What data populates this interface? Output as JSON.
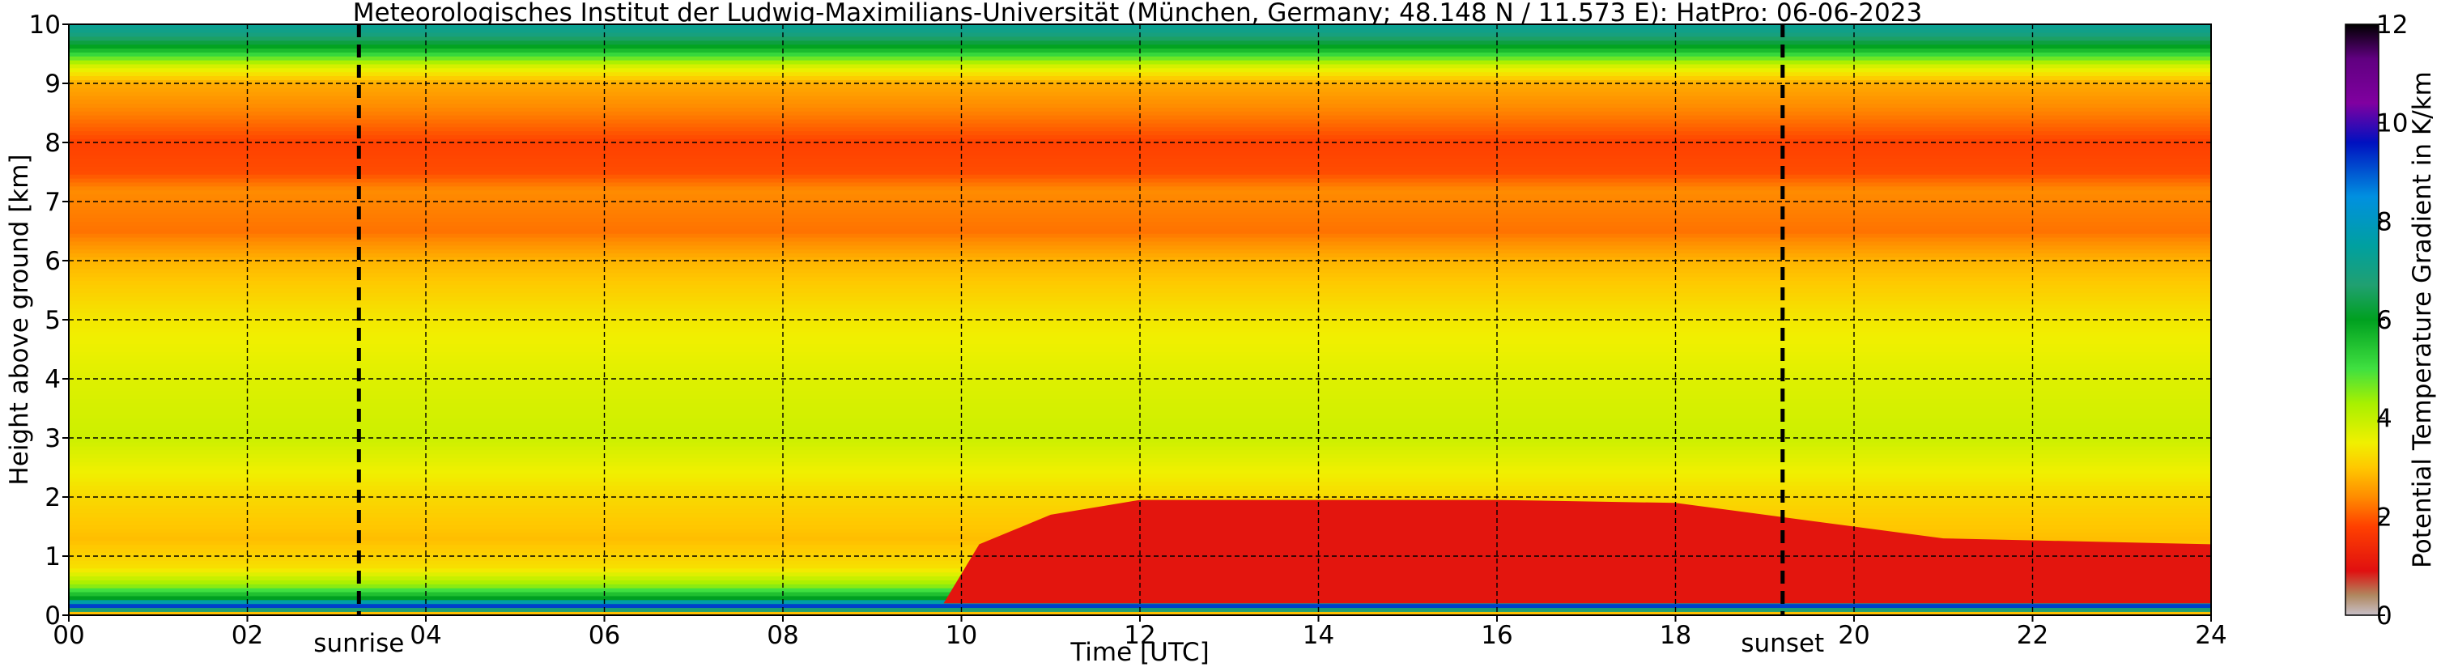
{
  "chart_data": {
    "type": "heatmap",
    "title": "Meteorologisches Institut der Ludwig-Maximilians-Universität (München, Germany; 48.148 N / 11.573 E):    HatPro: 06-06-2023",
    "xlabel": "Time [UTC]",
    "ylabel": "Height above ground [km]",
    "xlim": [
      0,
      24
    ],
    "ylim": [
      0,
      10
    ],
    "x_ticks": [
      0,
      2,
      4,
      6,
      8,
      10,
      12,
      14,
      16,
      18,
      20,
      22,
      24
    ],
    "x_tick_labels": [
      "00",
      "02",
      "04",
      "06",
      "08",
      "10",
      "12",
      "14",
      "16",
      "18",
      "20",
      "22",
      "24"
    ],
    "y_ticks": [
      0,
      1,
      2,
      3,
      4,
      5,
      6,
      7,
      8,
      9,
      10
    ],
    "y_tick_labels": [
      "0",
      "1",
      "2",
      "3",
      "4",
      "5",
      "6",
      "7",
      "8",
      "9",
      "10"
    ],
    "grid": true,
    "annotations": [
      {
        "label": "sunrise",
        "x": 3.25,
        "style": "dashed-vertical-line"
      },
      {
        "label": "sunset",
        "x": 19.2,
        "style": "dashed-vertical-line"
      }
    ],
    "colorbar": {
      "label": "Potential Temperature Gradient in K/km",
      "range": [
        0,
        12
      ],
      "ticks": [
        0,
        2,
        4,
        6,
        8,
        10,
        12
      ],
      "tick_labels": [
        "0",
        "2",
        "4",
        "6",
        "8",
        "10",
        "12"
      ],
      "colors": [
        {
          "value": 0.0,
          "color": "#c8c0c8"
        },
        {
          "value": 0.4,
          "color": "#b08860"
        },
        {
          "value": 0.9,
          "color": "#e01010"
        },
        {
          "value": 1.8,
          "color": "#ff4000"
        },
        {
          "value": 2.4,
          "color": "#ff8c00"
        },
        {
          "value": 3.0,
          "color": "#ffc800"
        },
        {
          "value": 3.5,
          "color": "#f0f000"
        },
        {
          "value": 4.3,
          "color": "#a8f000"
        },
        {
          "value": 5.0,
          "color": "#40e040"
        },
        {
          "value": 6.0,
          "color": "#00a020"
        },
        {
          "value": 6.7,
          "color": "#20a070"
        },
        {
          "value": 7.5,
          "color": "#00a0a0"
        },
        {
          "value": 8.5,
          "color": "#0090e0"
        },
        {
          "value": 9.6,
          "color": "#0010c0"
        },
        {
          "value": 10.4,
          "color": "#8000a0"
        },
        {
          "value": 11.3,
          "color": "#600080"
        },
        {
          "value": 12.0,
          "color": "#000000"
        }
      ]
    }
  }
}
